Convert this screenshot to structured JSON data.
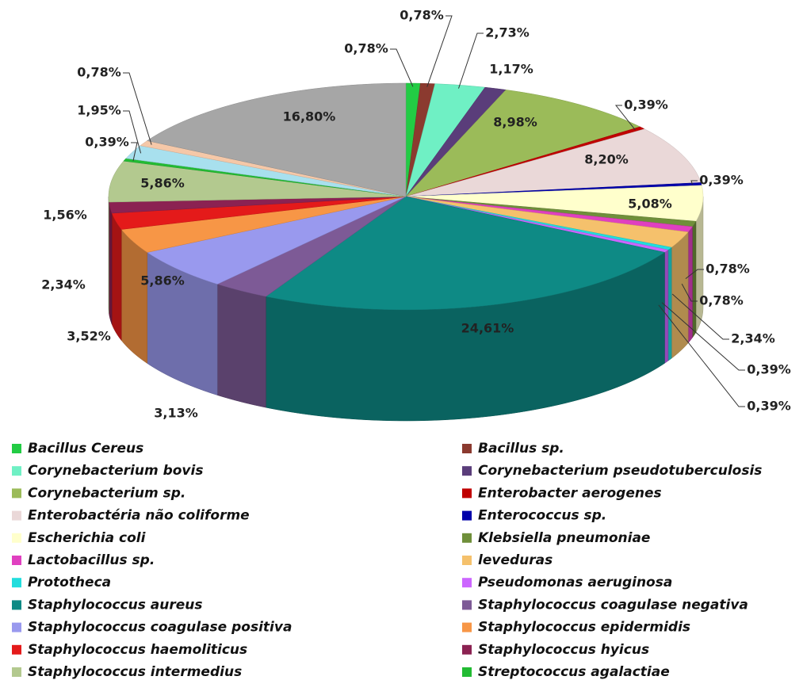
{
  "chart_data": {
    "type": "pie3d",
    "categories": [
      "Bacillus Cereus",
      "Bacillus sp.",
      "Corynebacterium bovis",
      "Corynebacterium pseudotuberculosis",
      "Corynebacterium sp.",
      "Enterobacter aerogenes",
      "Enterobactéria não coliforme",
      "Enterococcus sp.",
      "Escherichia coli",
      "Klebsiella pneumoniae",
      "Lactobacillus sp.",
      "leveduras",
      "Prototheca",
      "Pseudomonas aeruginosa",
      "Staphylococcus aureus",
      "Staphylococcus coagulase negativa",
      "Staphylococcus coagulase positiva",
      "Staphylococcus epidermidis",
      "Staphylococcus haemoliticus",
      "Staphylococcus hyicus",
      "Staphylococcus intermedius",
      "Streptococcus agalactiae",
      null,
      null,
      null
    ],
    "values": [
      0.78,
      0.78,
      2.73,
      1.17,
      8.98,
      0.39,
      8.2,
      0.39,
      5.08,
      0.78,
      0.78,
      2.34,
      0.39,
      0.39,
      24.61,
      3.13,
      5.86,
      3.52,
      2.34,
      1.56,
      5.86,
      0.39,
      1.95,
      0.78,
      16.8
    ],
    "value_labels": [
      "0,78%",
      "0,78%",
      "2,73%",
      "1,17%",
      "8,98%",
      "0,39%",
      "8,20%",
      "0,39%",
      "5,08%",
      "0,78%",
      "0,78%",
      "2,34%",
      "0,39%",
      "0,39%",
      "24,61%",
      "3,13%",
      "5,86%",
      "3,52%",
      "2,34%",
      "1,56%",
      "5,86%",
      "0,39%",
      "1,95%",
      "0,78%",
      "16,80%"
    ],
    "colors": [
      "#22cc44",
      "#8b3a2f",
      "#6ff0c4",
      "#5a3d7a",
      "#9bbb59",
      "#c00000",
      "#ead8d8",
      "#0000aa",
      "#ffffcc",
      "#6f8f3a",
      "#e040c0",
      "#f5c16c",
      "#22dddd",
      "#cc66ff",
      "#0e8a85",
      "#7d5a96",
      "#9999ee",
      "#f79646",
      "#e41a1a",
      "#8b2252",
      "#b3c98f",
      "#22bb33",
      "#a8e0ee",
      "#f5c8a8",
      "#a6a6a6"
    ],
    "legend": "bottom"
  }
}
